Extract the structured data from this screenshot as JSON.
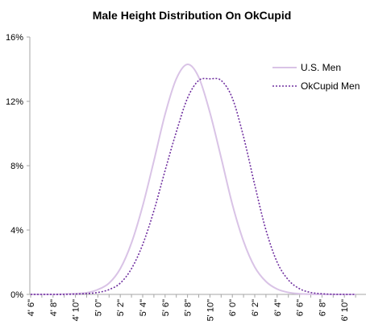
{
  "chart_data": {
    "type": "line",
    "title": "Male Height Distribution On OkCupid",
    "xlabel": "",
    "ylabel": "",
    "ylim": [
      0,
      16
    ],
    "y_ticks": [
      "0%",
      "4%",
      "8%",
      "12%",
      "16%"
    ],
    "y_tick_values": [
      0,
      4,
      8,
      12,
      16
    ],
    "grid": false,
    "legend_position": "top-right",
    "x": [
      "4' 6\"",
      "4' 7\"",
      "4' 8\"",
      "4' 9\"",
      "4' 10\"",
      "4' 11\"",
      "5' 0\"",
      "5' 1\"",
      "5' 2\"",
      "5' 3\"",
      "5' 4\"",
      "5' 5\"",
      "5' 6\"",
      "5' 7\"",
      "5' 8\"",
      "5' 9\"",
      "5' 10\"",
      "5' 11\"",
      "6' 0\"",
      "6' 1\"",
      "6' 2\"",
      "6' 3\"",
      "6' 4\"",
      "6' 5\"",
      "6' 6\"",
      "6' 7\"",
      "6' 8\"",
      "6' 9\"",
      "6' 10\"",
      "6' 11\""
    ],
    "x_tick_labels": [
      "4' 6\"",
      "4' 8\"",
      "4' 10\"",
      "5' 0\"",
      "5' 2\"",
      "5' 4\"",
      "5' 6\"",
      "5' 8\"",
      "5' 10\"",
      "6' 0\"",
      "6' 2\"",
      "6' 4\"",
      "6' 6\"",
      "6' 8\"",
      "6' 10\""
    ],
    "series": [
      {
        "name": "U.S. Men",
        "style": "solid",
        "color": "#d9c3e6",
        "values": [
          0,
          0,
          0,
          0.02,
          0.05,
          0.1,
          0.3,
          0.7,
          1.6,
          3.2,
          5.5,
          8.3,
          11.2,
          13.4,
          14.3,
          13.5,
          11.3,
          8.5,
          5.6,
          3.3,
          1.7,
          0.8,
          0.33,
          0.12,
          0.04,
          0.01,
          0,
          0,
          0,
          0
        ]
      },
      {
        "name": "OkCupid Men",
        "style": "dotted",
        "color": "#7030a0",
        "values": [
          0,
          0,
          0,
          0,
          0.02,
          0.05,
          0.12,
          0.3,
          0.7,
          1.6,
          3.1,
          5.2,
          7.7,
          10.1,
          12.2,
          13.3,
          13.4,
          13.3,
          12.2,
          9.8,
          6.8,
          4.0,
          2.0,
          0.9,
          0.35,
          0.12,
          0.04,
          0.01,
          0,
          0
        ]
      }
    ]
  }
}
